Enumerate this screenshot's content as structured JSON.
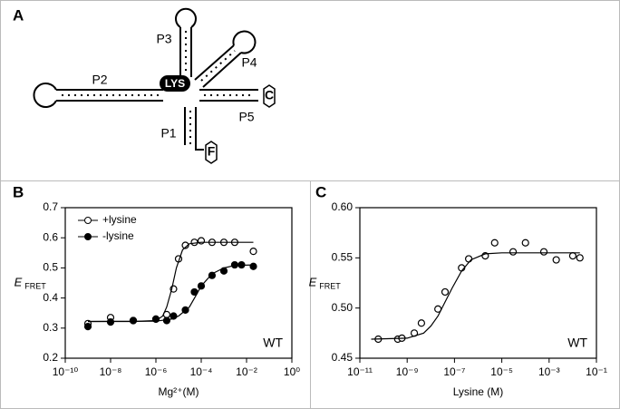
{
  "diagram": {
    "panel": "A",
    "labels": {
      "p1": "P1",
      "p2": "P2",
      "p3": "P3",
      "p4": "P4",
      "p5": "P5",
      "lys": "LYS",
      "c": "C",
      "f": "F"
    }
  },
  "chart_data": [
    {
      "type": "scatter",
      "panel": "B",
      "xlabel": "Mg²⁺(M)",
      "ylabel": "E",
      "ylabel_sub": "FRET",
      "xlog": true,
      "xlim": [
        1e-10,
        1
      ],
      "xticks": [
        {
          "value": 1e-10,
          "label": "10⁻¹⁰"
        },
        {
          "value": 1e-08,
          "label": "10⁻⁸"
        },
        {
          "value": 1e-06,
          "label": "10⁻⁶"
        },
        {
          "value": 0.0001,
          "label": "10⁻⁴"
        },
        {
          "value": 0.01,
          "label": "10⁻²"
        },
        {
          "value": 1,
          "label": "10⁰"
        }
      ],
      "ylim": [
        0.2,
        0.7
      ],
      "yticks": [
        0.2,
        0.3,
        0.4,
        0.5,
        0.6,
        0.7
      ],
      "annotation": "WT",
      "legend": "upper left",
      "series": [
        {
          "name": "+lysine",
          "color": "#000000",
          "marker": "open",
          "x": [
            1e-09,
            1e-08,
            1e-07,
            1e-06,
            3e-06,
            6e-06,
            1e-05,
            2e-05,
            5e-05,
            0.0001,
            0.0003,
            0.001,
            0.003,
            0.02
          ],
          "values": [
            0.315,
            0.335,
            0.325,
            0.33,
            0.345,
            0.43,
            0.53,
            0.575,
            0.585,
            0.59,
            0.585,
            0.585,
            0.585,
            0.555
          ]
        },
        {
          "name": "-lysine",
          "color": "#000000",
          "marker": "filled",
          "x": [
            1e-09,
            1e-08,
            1e-07,
            1e-06,
            3e-06,
            6e-06,
            2e-05,
            5e-05,
            0.0001,
            0.0003,
            0.001,
            0.003,
            0.006,
            0.02
          ],
          "values": [
            0.305,
            0.32,
            0.325,
            0.33,
            0.325,
            0.34,
            0.36,
            0.42,
            0.44,
            0.475,
            0.49,
            0.51,
            0.51,
            0.505
          ]
        },
        {
          "color": "#000000",
          "marker": "line",
          "x": [
            1e-09,
            1e-07,
            1e-06,
            2e-06,
            3e-06,
            5e-06,
            8e-06,
            1.5e-05,
            3e-05,
            0.0001,
            0.001,
            0.02
          ],
          "values": [
            0.322,
            0.322,
            0.325,
            0.34,
            0.37,
            0.43,
            0.5,
            0.56,
            0.58,
            0.585,
            0.585,
            0.585
          ]
        },
        {
          "color": "#000000",
          "marker": "line",
          "x": [
            1e-09,
            1e-06,
            5e-06,
            1e-05,
            3e-05,
            6e-05,
            0.0001,
            0.0003,
            0.001,
            0.003,
            0.02
          ],
          "values": [
            0.322,
            0.323,
            0.33,
            0.34,
            0.37,
            0.41,
            0.44,
            0.48,
            0.5,
            0.508,
            0.51
          ]
        }
      ]
    },
    {
      "type": "scatter",
      "panel": "C",
      "xlabel": "Lysine (M)",
      "ylabel": "E",
      "ylabel_sub": "FRET",
      "xlog": true,
      "xlim": [
        1e-11,
        0.1
      ],
      "xticks": [
        {
          "value": 1e-11,
          "label": "10⁻¹¹"
        },
        {
          "value": 1e-09,
          "label": "10⁻⁹"
        },
        {
          "value": 1e-07,
          "label": "10⁻⁷"
        },
        {
          "value": 1e-05,
          "label": "10⁻⁵"
        },
        {
          "value": 0.001,
          "label": "10⁻³"
        },
        {
          "value": 0.1,
          "label": "10⁻¹"
        }
      ],
      "ylim": [
        0.45,
        0.6
      ],
      "yticks": [
        0.45,
        {
          "value": 0.5,
          "label": "0.50"
        },
        0.55,
        {
          "value": 0.6,
          "label": "0.60"
        }
      ],
      "annotation": "WT",
      "series": [
        {
          "color": "#000000",
          "marker": "open",
          "x": [
            6e-11,
            4e-10,
            6e-10,
            2e-09,
            4e-09,
            2e-08,
            4e-08,
            2e-07,
            4e-07,
            2e-06,
            5e-06,
            3e-05,
            0.0001,
            0.0006,
            0.002,
            0.01,
            0.02
          ],
          "values": [
            0.469,
            0.469,
            0.47,
            0.475,
            0.485,
            0.499,
            0.516,
            0.54,
            0.549,
            0.552,
            0.565,
            0.556,
            0.565,
            0.556,
            0.548,
            0.552,
            0.55
          ]
        },
        {
          "color": "#000000",
          "marker": "line",
          "x": [
            3e-11,
            1e-09,
            5e-09,
            1e-08,
            2e-08,
            4e-08,
            8e-08,
            2e-07,
            5e-07,
            2e-06,
            1e-05,
            0.02
          ],
          "values": [
            0.469,
            0.47,
            0.475,
            0.482,
            0.492,
            0.506,
            0.52,
            0.537,
            0.548,
            0.554,
            0.555,
            0.555
          ]
        }
      ]
    }
  ]
}
